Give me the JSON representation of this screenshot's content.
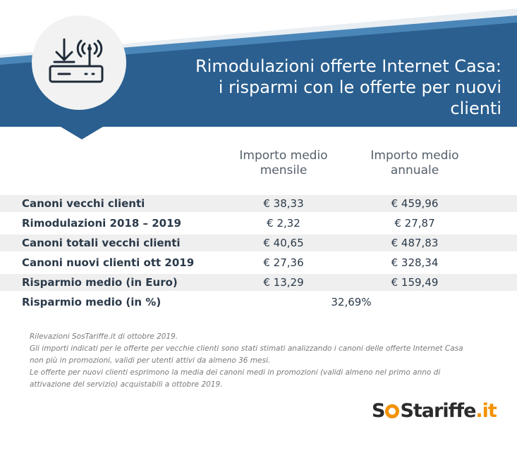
{
  "header": {
    "title_line1": "Rimodulazioni offerte Internet Casa:",
    "title_line2": "i risparmi con le offerte per nuovi clienti",
    "icon": "router-icon",
    "colors": {
      "dark": "#2a5f8f",
      "mid": "#4a86b8",
      "light": "#e9eef3",
      "icon_bg": "#f2f2f2"
    }
  },
  "table": {
    "columns": [
      {
        "line1": "Importo medio",
        "line2": "mensile"
      },
      {
        "line1": "Importo medio",
        "line2": "annuale"
      }
    ],
    "rows": [
      {
        "label": "Canoni vecchi clienti",
        "monthly": "€ 38,33",
        "annual": "€ 459,96"
      },
      {
        "label": "Rimodulazioni 2018 – 2019",
        "monthly": "€ 2,32",
        "annual": "€ 27,87"
      },
      {
        "label": "Canoni totali vecchi clienti",
        "monthly": "€ 40,65",
        "annual": "€ 487,83"
      },
      {
        "label": "Canoni nuovi clienti ott  2019",
        "monthly": "€ 27,36",
        "annual": "€ 328,34"
      },
      {
        "label": "Risparmio medio (in Euro)",
        "monthly": "€ 13,29",
        "annual": "€ 159,49"
      },
      {
        "label": "Risparmio medio (in %)",
        "merged": "32,69%"
      }
    ]
  },
  "notes": [
    "Rilevazioni SosTariffe.it di ottobre 2019.",
    "Gli importi indicati per le offerte per vecchie clienti sono stati stimati analizzando i canoni delle offerte Internet Casa",
    "non più in promozioni, validi per utenti attivi da almeno 36 mesi.",
    "Le offerte per nuovi clienti esprimono la media dei canoni medi in promozioni (validi almeno nel primo anno di",
    "attivazione del servizio) acquistabili a ottobre 2019."
  ],
  "logo": {
    "part1": "S",
    "part2": "Stariffe",
    "part3": ".it",
    "accent": "#f39200"
  }
}
